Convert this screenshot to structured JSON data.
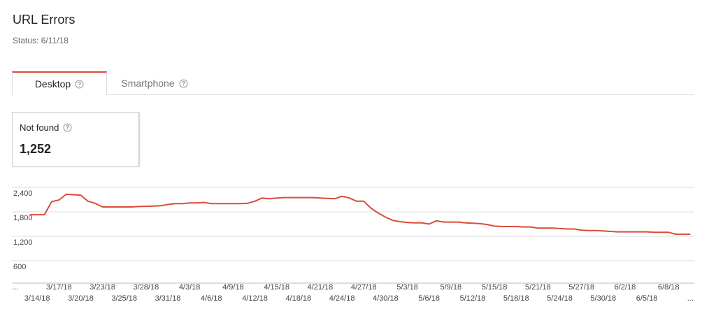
{
  "header": {
    "title": "URL Errors",
    "status": "Status: 6/11/18"
  },
  "tabs": [
    "Desktop",
    "Smartphone"
  ],
  "metric": {
    "label": "Not found",
    "value": "1,252"
  },
  "chart_data": {
    "type": "line",
    "color": "#dd4b39",
    "grid": true,
    "ylim": [
      0,
      2400
    ],
    "yticks": [
      600,
      {
        "value": 1200,
        "label": "1,200"
      },
      {
        "value": 1800,
        "label": "1,800"
      },
      {
        "value": 2400,
        "label": "2,400"
      }
    ],
    "categories": [
      "...",
      null,
      null,
      "3/14/18",
      null,
      null,
      "3/17/18",
      null,
      null,
      "3/20/18",
      null,
      null,
      "3/23/18",
      null,
      null,
      "3/25/18",
      null,
      null,
      "3/28/18",
      null,
      null,
      "3/31/18",
      null,
      null,
      "4/3/18",
      null,
      null,
      "4/6/18",
      null,
      null,
      "4/9/18",
      null,
      null,
      "4/12/18",
      null,
      null,
      "4/15/18",
      null,
      null,
      "4/18/18",
      null,
      null,
      "4/21/18",
      null,
      null,
      "4/24/18",
      null,
      null,
      "4/27/18",
      null,
      null,
      "4/30/18",
      null,
      null,
      "5/3/18",
      null,
      null,
      "5/6/18",
      null,
      null,
      "5/9/18",
      null,
      null,
      "5/12/18",
      null,
      null,
      "5/15/18",
      null,
      null,
      "5/18/18",
      null,
      null,
      "5/21/18",
      null,
      null,
      "5/24/18",
      null,
      null,
      "5/27/18",
      null,
      null,
      "5/30/18",
      null,
      null,
      "6/2/18",
      null,
      null,
      "6/5/18",
      null,
      null,
      "6/8/18",
      null,
      null,
      "..."
    ],
    "values": [
      null,
      null,
      1730,
      1730,
      1730,
      2050,
      2090,
      2230,
      2220,
      2210,
      2060,
      2010,
      1920,
      1920,
      1920,
      1920,
      1920,
      1930,
      1935,
      1940,
      1950,
      1980,
      2000,
      2000,
      2020,
      2020,
      2030,
      2000,
      2000,
      2000,
      2000,
      2000,
      2010,
      2060,
      2140,
      2120,
      2140,
      2150,
      2150,
      2150,
      2150,
      2150,
      2140,
      2130,
      2120,
      2180,
      2140,
      2060,
      2060,
      1890,
      1770,
      1670,
      1590,
      1560,
      1540,
      1530,
      1530,
      1500,
      1580,
      1550,
      1550,
      1550,
      1530,
      1520,
      1510,
      1490,
      1450,
      1440,
      1440,
      1440,
      1430,
      1430,
      1400,
      1400,
      1400,
      1390,
      1380,
      1380,
      1350,
      1340,
      1340,
      1330,
      1320,
      1310,
      1310,
      1310,
      1310,
      1310,
      1300,
      1300,
      1300,
      1250,
      1250,
      1252
    ]
  }
}
